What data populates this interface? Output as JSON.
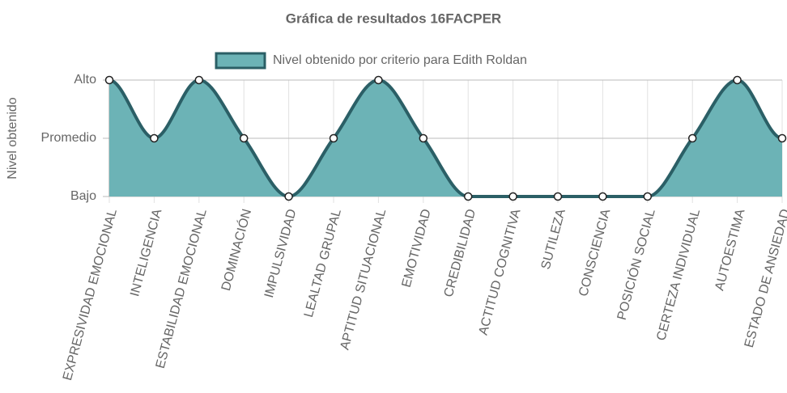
{
  "chart_data": {
    "type": "line",
    "title": "Gráfica de resultados 16FACPER",
    "y_label": "Nivel obtenido",
    "categories": [
      "EXPRESIVIDAD EMOCIONAL",
      "INTELIGENCIA",
      "ESTABILIDAD EMOCIONAL",
      "DOMINACIÓN",
      "IMPULSIVIDAD",
      "LEALTAD GRUPAL",
      "APTITUD SITUACIONAL",
      "EMOTIVIDAD",
      "CREDIBILIDAD",
      "ACTITUD COGNITIVA",
      "SUTILEZA",
      "CONSCIENCIA",
      "POSICIÓN SOCIAL",
      "CERTEZA INDIVIDUAL",
      "AUTOESTIMA",
      "ESTADO DE ANSIEDAD"
    ],
    "series": [
      {
        "name": "Nivel obtenido por criterio para Edith Roldan",
        "color": "#2b5f66",
        "fill_color": "#6cb3b6",
        "values": [
          3,
          2,
          3,
          2,
          1,
          2,
          3,
          2,
          1,
          1,
          1,
          1,
          1,
          2,
          3,
          2
        ]
      }
    ],
    "ylim": [
      1,
      3
    ],
    "yticks": [
      {
        "value": 1,
        "label": "Bajo"
      },
      {
        "value": 2,
        "label": "Promedio"
      },
      {
        "value": 3,
        "label": "Alto"
      }
    ],
    "grid": true,
    "legend": "top"
  }
}
